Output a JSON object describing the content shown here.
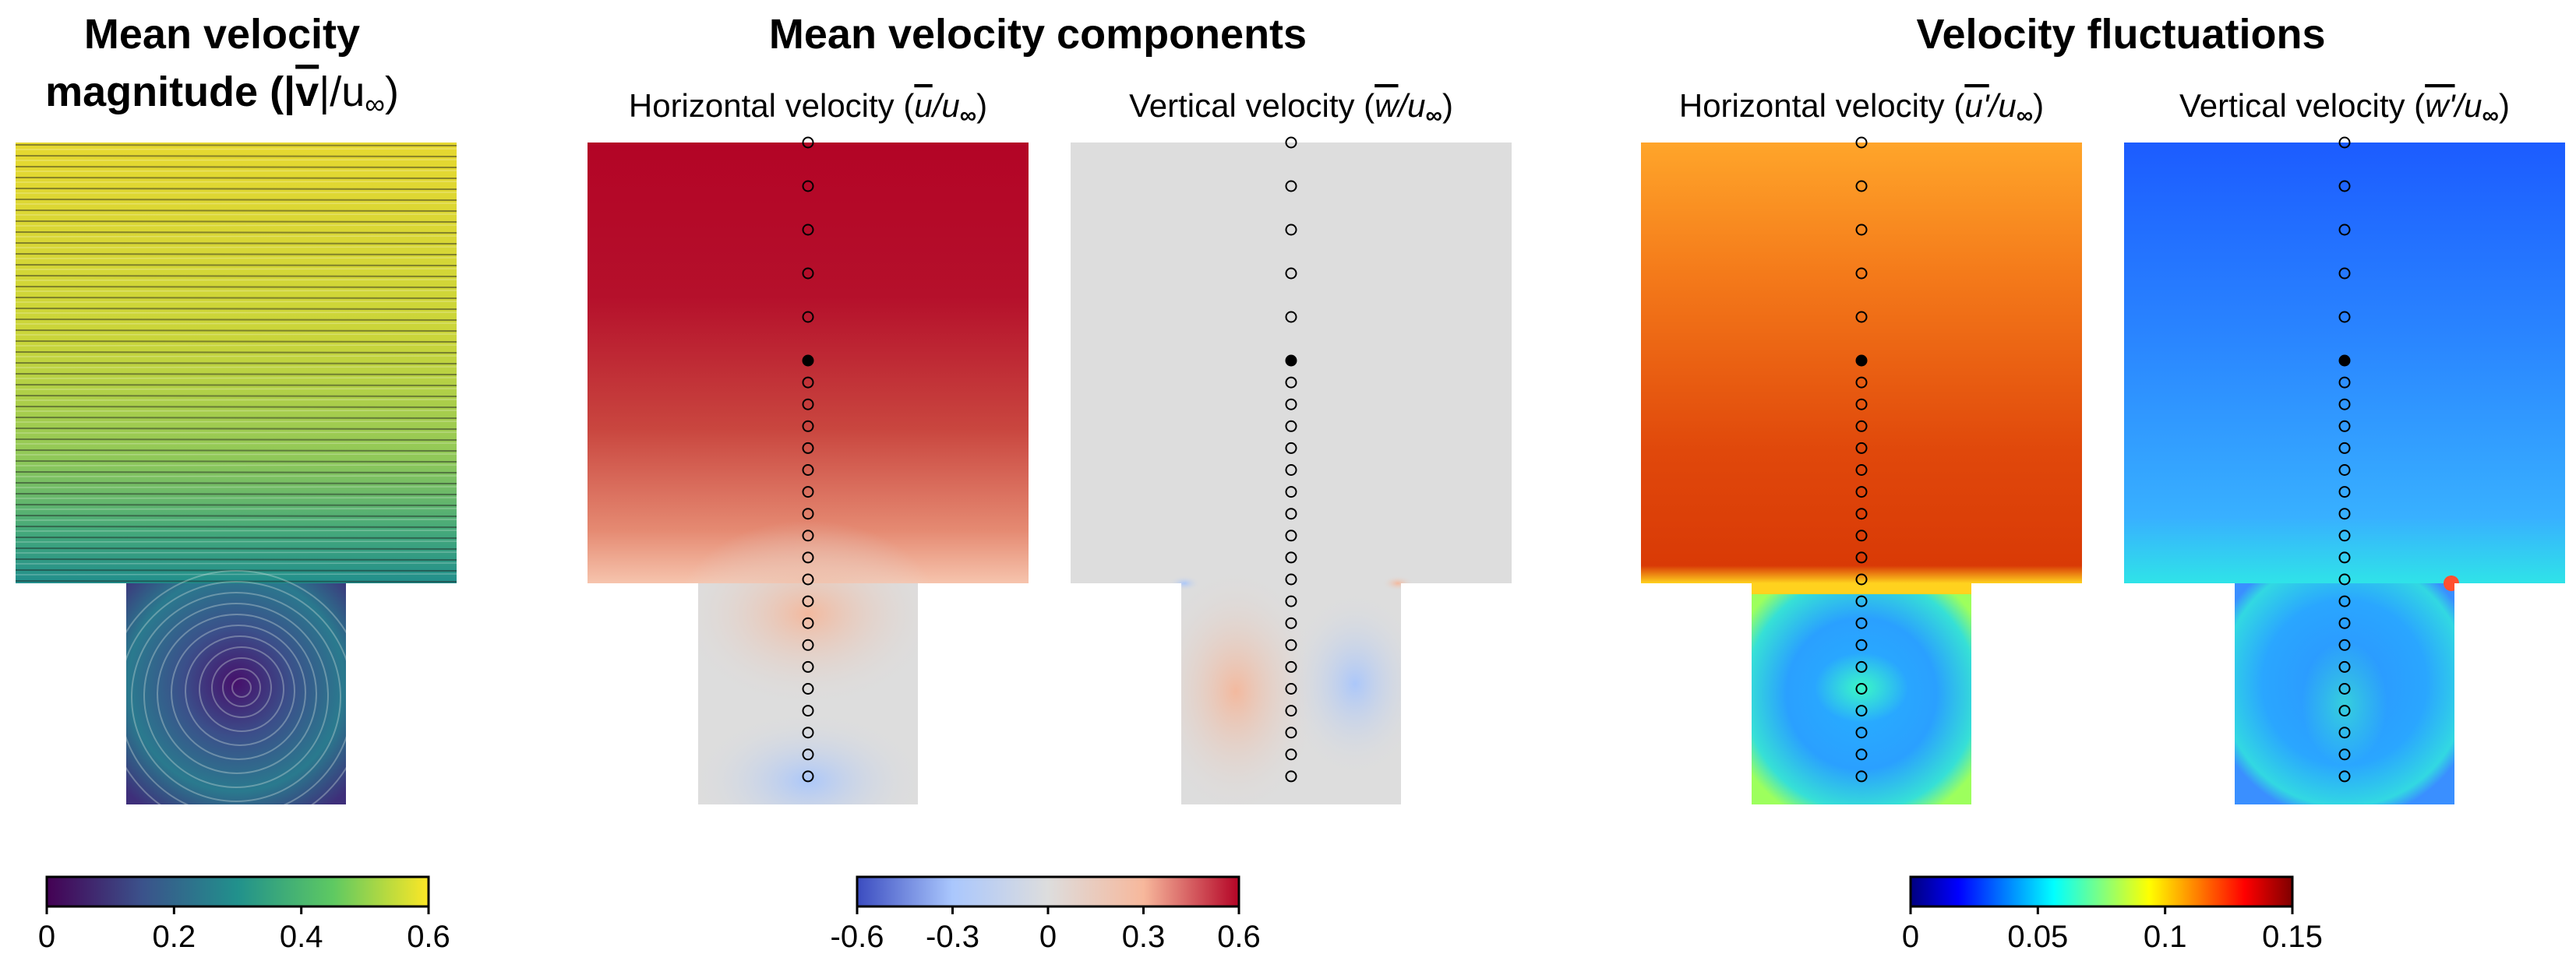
{
  "titles": {
    "magnitude_line1": "Mean velocity",
    "magnitude_line2_prefix": "magnitude (|",
    "magnitude_vbar": "v",
    "magnitude_line2_suffix": "|/u",
    "components": "Mean velocity components",
    "fluctuations": "Velocity fluctuations"
  },
  "subtitles": {
    "u_mean": {
      "text": "Horizontal velocity (",
      "sym": "u",
      "den": "/u",
      "close": ")"
    },
    "w_mean": {
      "text": "Vertical velocity (",
      "sym": "w",
      "den": "/u",
      "close": ")"
    },
    "u_fluct": {
      "text": "Horizontal velocity (",
      "sym": "u'",
      "den": "/u",
      "close": ")"
    },
    "w_fluct": {
      "text": "Vertical velocity (",
      "sym": "w'",
      "den": "/u",
      "close": ")"
    }
  },
  "infinity_symbol": "∞",
  "colorbars": {
    "viridis": {
      "ticks": [
        "0",
        "0.2",
        "0.4",
        "0.6"
      ],
      "min": 0,
      "max": 0.6,
      "colors": [
        "#440154",
        "#3b528b",
        "#21918c",
        "#5ec962",
        "#fde725"
      ]
    },
    "diverging": {
      "ticks": [
        "-0.6",
        "-0.3",
        "0",
        "0.3",
        "0.6"
      ],
      "min": -0.6,
      "max": 0.6,
      "colors": [
        "#3b4cc0",
        "#aac7fd",
        "#dddddd",
        "#f7b89c",
        "#b40426"
      ]
    },
    "jet": {
      "ticks": [
        "0",
        "0.05",
        "0.1",
        "0.15"
      ],
      "min": 0,
      "max": 0.15,
      "colors": [
        "#00007f",
        "#0000ff",
        "#0080ff",
        "#00ffff",
        "#80ff80",
        "#ffff00",
        "#ff8000",
        "#ff0000",
        "#7f0000"
      ]
    }
  },
  "probes": {
    "open_count": 5,
    "filled_count": 1,
    "lower_count": 19
  }
}
